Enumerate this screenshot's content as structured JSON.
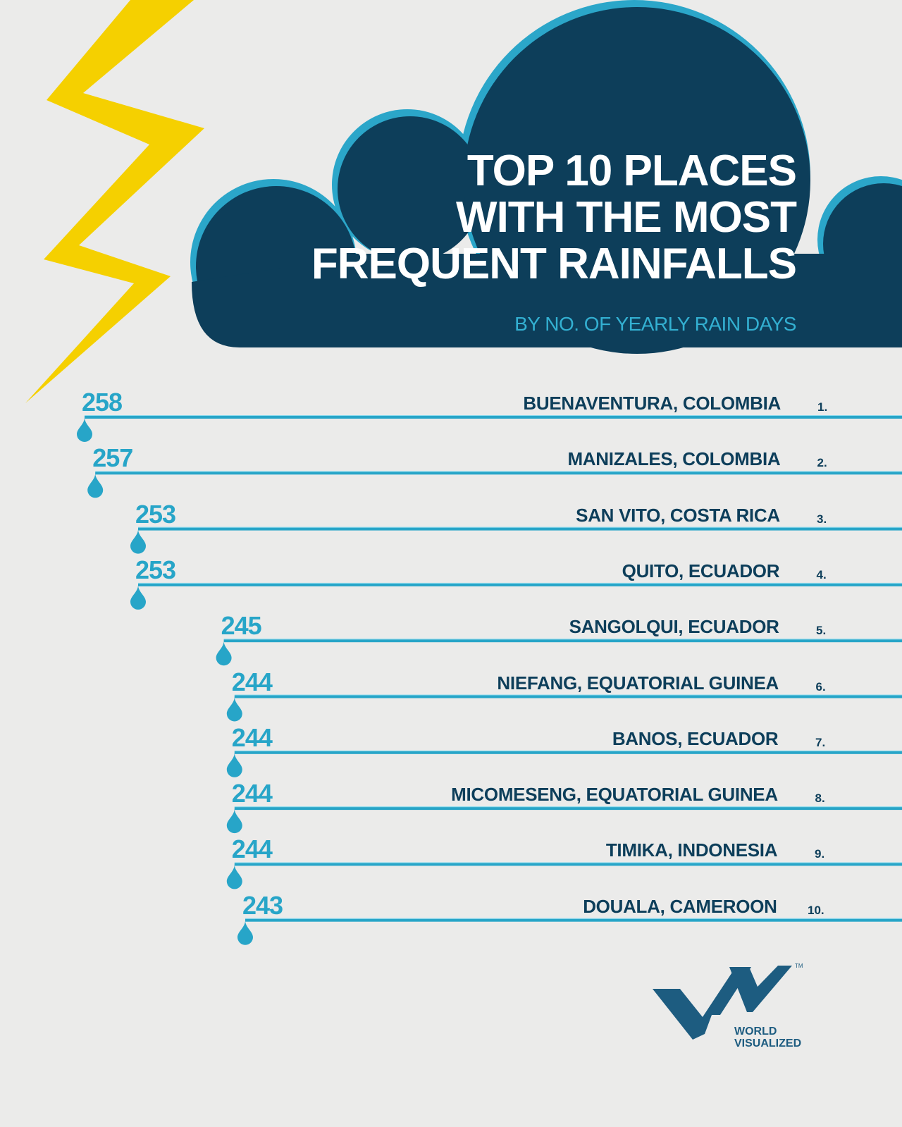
{
  "colors": {
    "background": "#ebebea",
    "cloud": "#0d3e5a",
    "cloud_rim": "#2ba6c9",
    "accent": "#27a5c8",
    "text_dark": "#0d3e5a",
    "lightning": "#f5d000",
    "logo": "#1d5c80"
  },
  "chart_data": {
    "type": "bar",
    "title_lines": [
      "TOP 10 PLACES",
      "WITH THE MOST",
      "FREQUENT RAINFALLS"
    ],
    "subtitle": "BY NO. OF YEARLY RAIN DAYS",
    "orientation": "horizontal",
    "categories": [
      "BUENAVENTURA, COLOMBIA",
      "MANIZALES, COLOMBIA",
      "SAN VITO, COSTA RICA",
      "QUITO, ECUADOR",
      "SANGOLQUI, ECUADOR",
      "NIEFANG, EQUATORIAL GUINEA",
      "BANOS, ECUADOR",
      "MICOMESENG, EQUATORIAL GUINEA",
      "TIMIKA, INDONESIA",
      "DOUALA, CAMEROON"
    ],
    "ranks": [
      "1.",
      "2.",
      "3.",
      "4.",
      "5.",
      "6.",
      "7.",
      "8.",
      "9.",
      "10."
    ],
    "values": [
      258,
      257,
      253,
      253,
      245,
      244,
      244,
      244,
      244,
      243
    ]
  },
  "logo": {
    "line1": "WORLD",
    "line2": "VISUALIZED",
    "tm": "TM"
  }
}
